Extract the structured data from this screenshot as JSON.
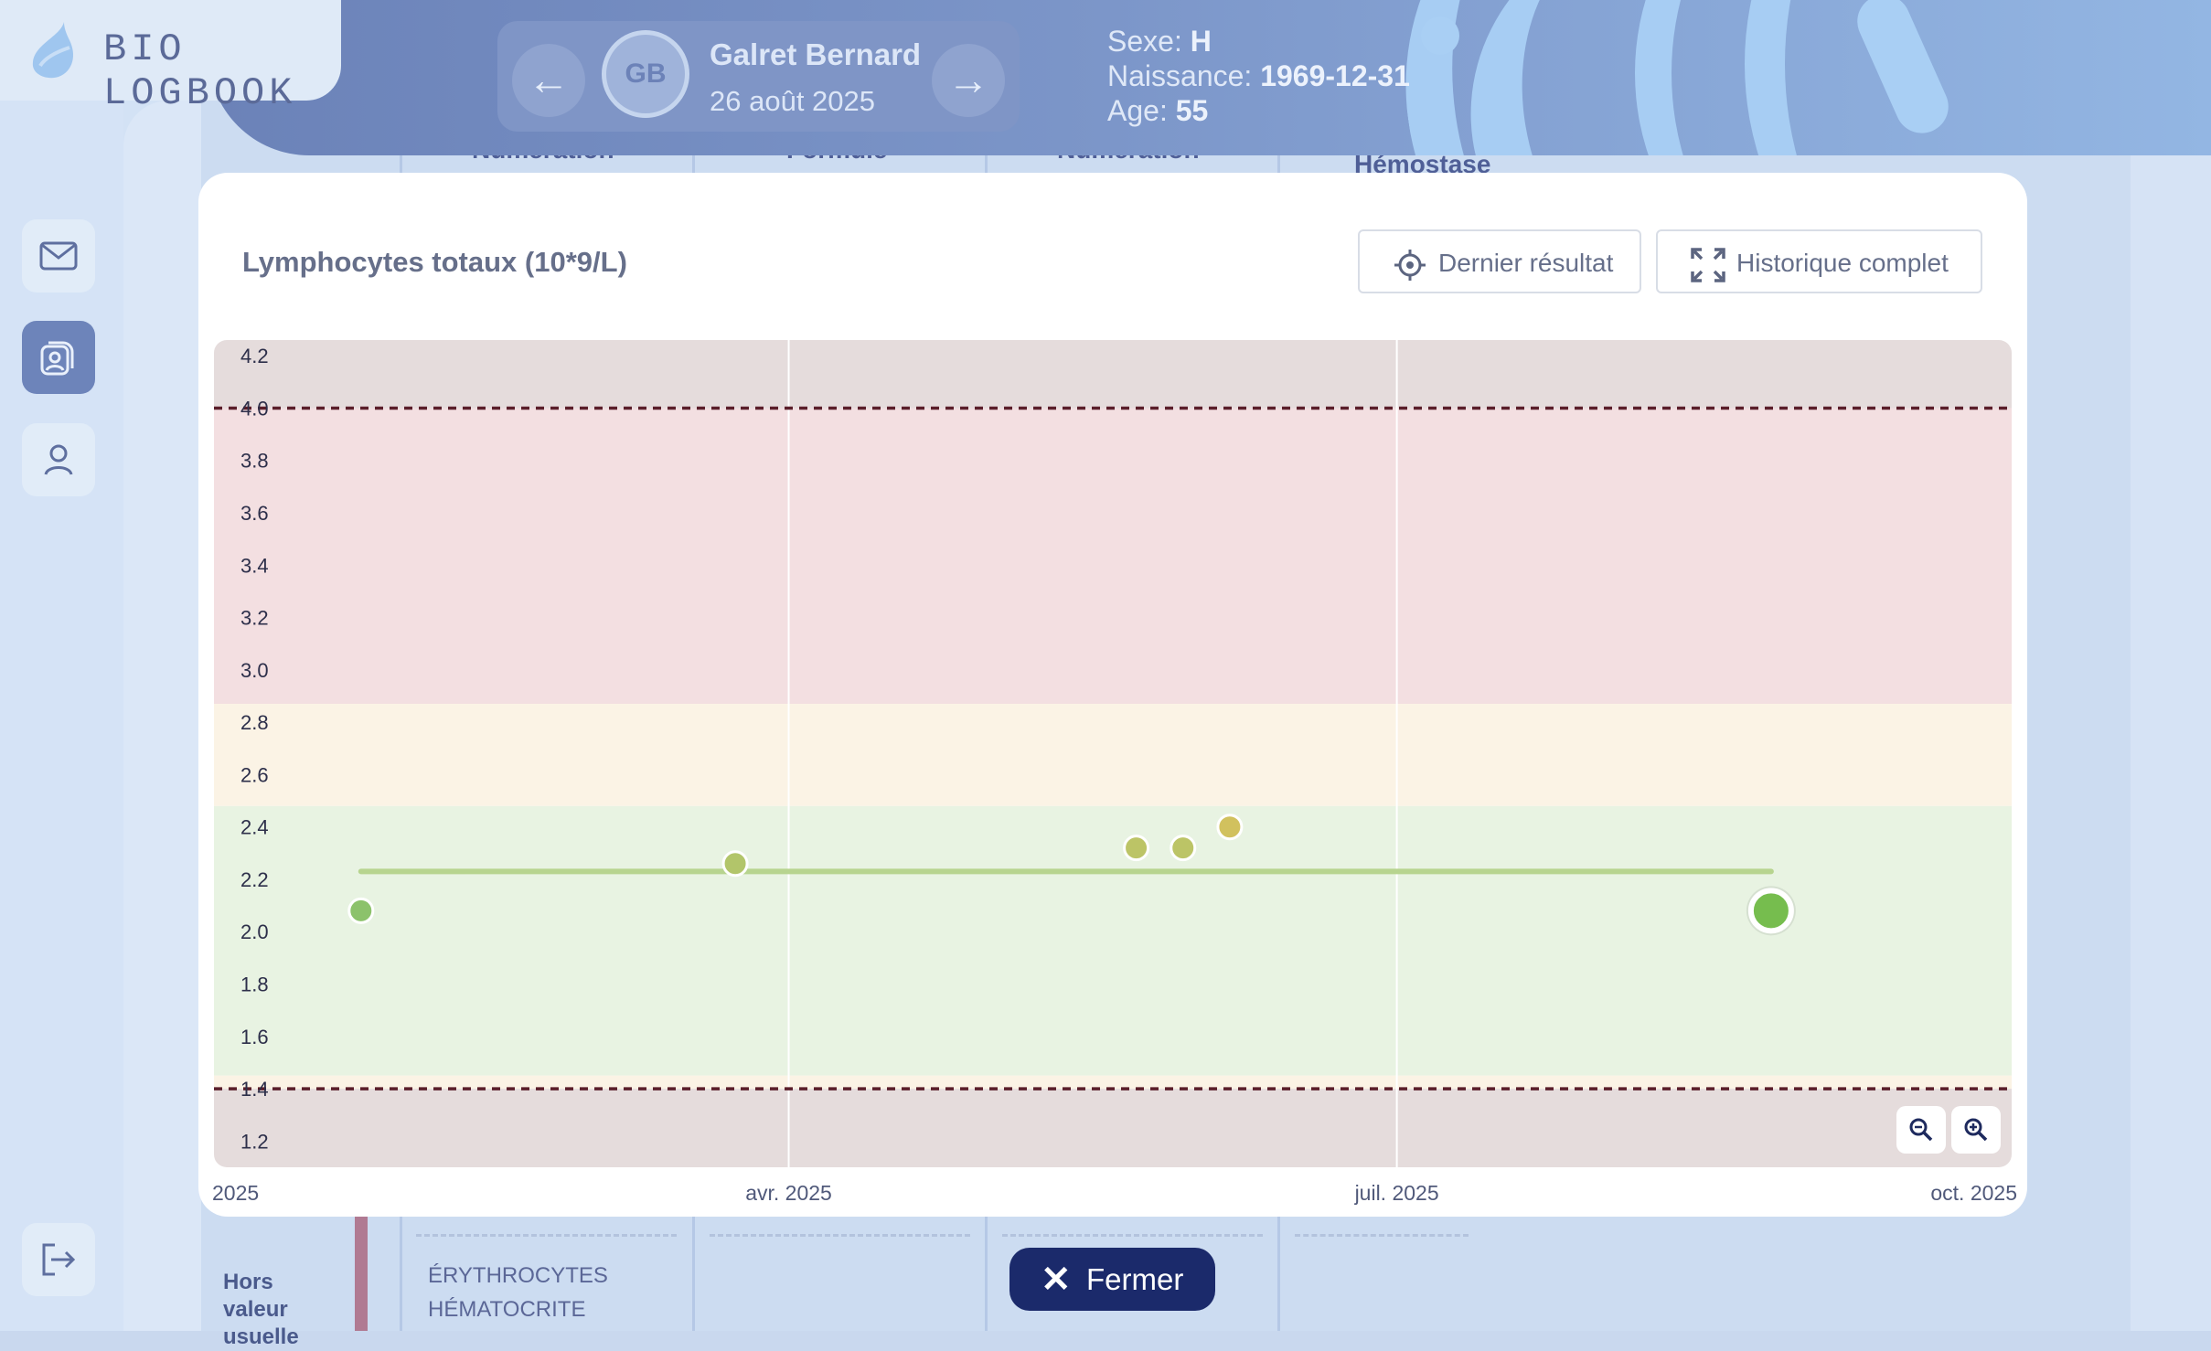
{
  "app": {
    "logo_text": "BIO LOGBOOK"
  },
  "patient": {
    "initials": "GB",
    "name": "Galret Bernard",
    "date": "26 août 2025",
    "sex_label": "Sexe:",
    "sex": "H",
    "birth_label": "Naissance:",
    "birth": "1969-12-31",
    "age_label": "Age:",
    "age": "55"
  },
  "sidebar": {
    "items": [
      {
        "name": "messages",
        "icon": "mail-icon"
      },
      {
        "name": "patients",
        "icon": "patients-icon",
        "active": true
      },
      {
        "name": "profile",
        "icon": "user-icon"
      }
    ],
    "logout_icon": "logout-icon"
  },
  "background_page": {
    "column_headers": [
      "Numération",
      "Formule",
      "Numération",
      "Hémostase"
    ],
    "row_label": "Hors valeur usuelle",
    "row_items": [
      "ÉRYTHROCYTES",
      "HÉMATOCRITE"
    ]
  },
  "modal": {
    "title": "Lymphocytes totaux (10*9/L)",
    "last_result_label": "Dernier résultat",
    "full_history_label": "Historique complet",
    "zoom_out_icon": "zoom-out-icon",
    "zoom_in_icon": "zoom-in-icon"
  },
  "close_label": "Fermer",
  "chart_data": {
    "type": "scatter",
    "title": "Lymphocytes totaux (10*9/L)",
    "ylim": [
      1.1,
      4.26
    ],
    "yticks": [
      "1.2",
      "1.4",
      "1.6",
      "1.8",
      "2.0",
      "2.2",
      "2.4",
      "2.6",
      "2.8",
      "3.0",
      "3.2",
      "3.4",
      "3.6",
      "3.8",
      "4.0",
      "4.2"
    ],
    "xlim": [
      "2025-01-05",
      "2025-10-01"
    ],
    "xticks": [
      {
        "date": "2025-01-01",
        "label": "2025"
      },
      {
        "date": "2025-04-01",
        "label": "avr. 2025"
      },
      {
        "date": "2025-07-01",
        "label": "juil. 2025"
      },
      {
        "date": "2025-10-01",
        "label": "oct. 2025"
      }
    ],
    "grid": "vertical",
    "points": [
      {
        "date": "2025-01-27",
        "value": 2.08,
        "color": "#8cc26b"
      },
      {
        "date": "2025-03-24",
        "value": 2.26,
        "color": "#b2c56a"
      },
      {
        "date": "2025-05-23",
        "value": 2.32,
        "color": "#bcc466"
      },
      {
        "date": "2025-05-30",
        "value": 2.32,
        "color": "#bcc466"
      },
      {
        "date": "2025-06-06",
        "value": 2.4,
        "color": "#d1c15e"
      },
      {
        "date": "2025-08-26",
        "value": 2.08,
        "color": "#76bd4e",
        "latest": true
      }
    ],
    "mean_line": {
      "value": 2.23,
      "from": "2025-01-27",
      "to": "2025-08-26",
      "color": "#b7d48f"
    },
    "bands": [
      {
        "from": 4.0,
        "to": 4.26,
        "color": "#e5dcdc"
      },
      {
        "from": 2.87,
        "to": 4.0,
        "color": "#f3dfe1"
      },
      {
        "from": 2.48,
        "to": 2.87,
        "color": "#fbf3e5"
      },
      {
        "from": 1.45,
        "to": 2.48,
        "color": "#e8f3e2"
      },
      {
        "from": 1.4,
        "to": 1.45,
        "color": "#fbf3e5"
      },
      {
        "from": 1.1,
        "to": 1.4,
        "color": "#e5dcdc"
      }
    ],
    "limits": [
      {
        "value": 4.0,
        "color": "#5a1e2a"
      },
      {
        "value": 1.4,
        "color": "#5a1e2a"
      }
    ]
  }
}
